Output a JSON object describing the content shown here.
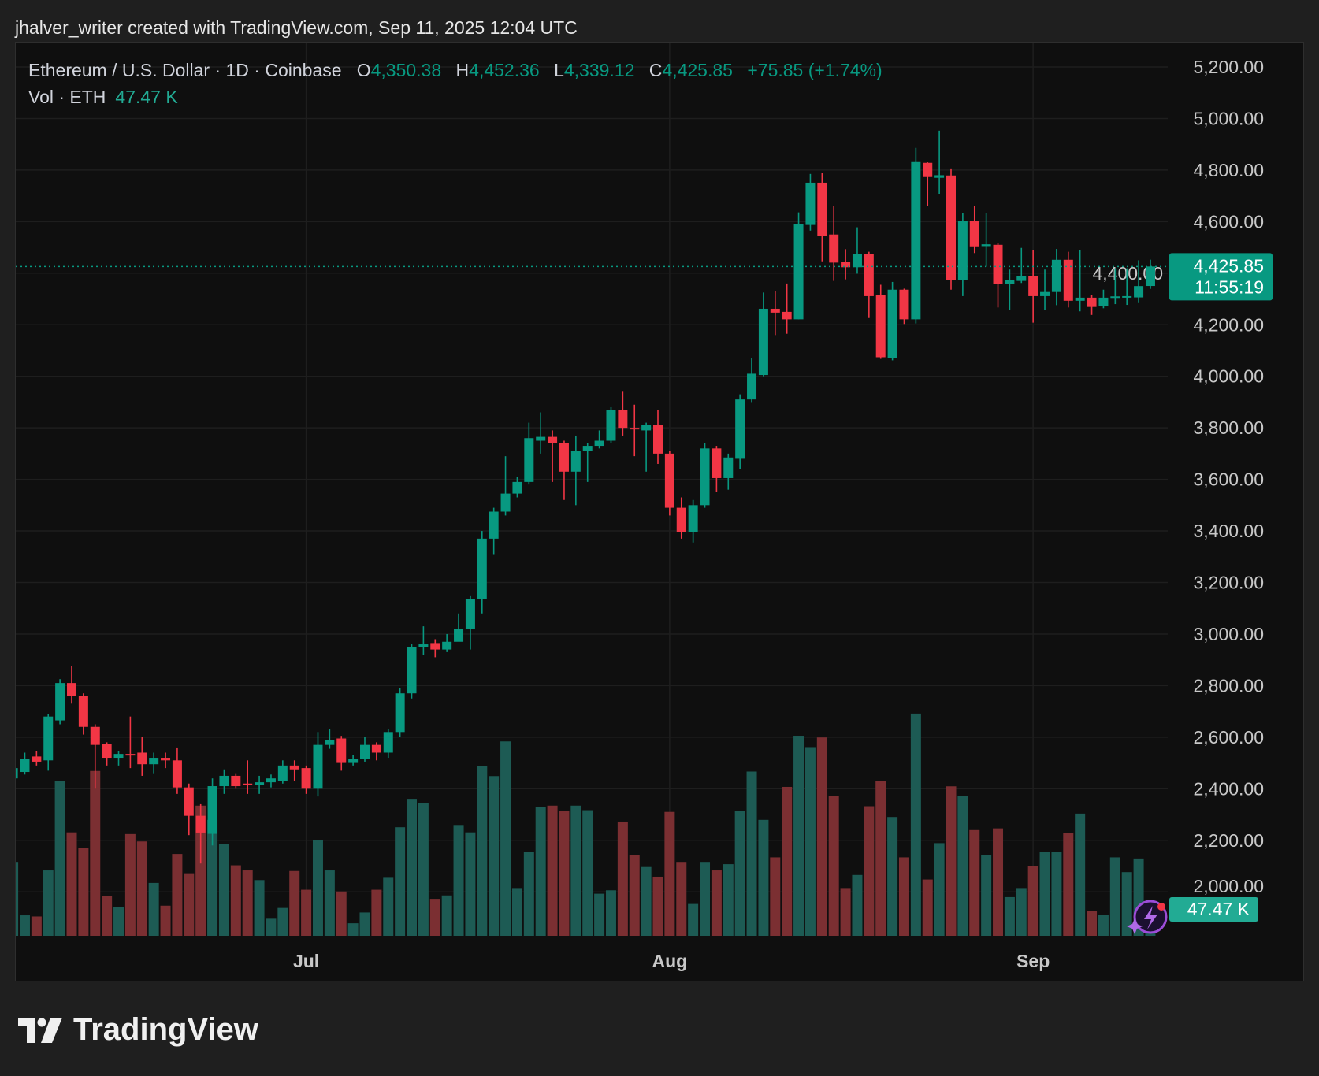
{
  "credit": "jhalver_writer created with TradingView.com, Sep 11, 2025 12:04 UTC",
  "legend": {
    "symbol": "Ethereum / U.S. Dollar · 1D · Coinbase",
    "o_label": "O",
    "o": "4,350.38",
    "h_label": "H",
    "h": "4,452.36",
    "l_label": "L",
    "l": "4,339.12",
    "c_label": "C",
    "c": "4,425.85",
    "change": "+75.85 (+1.74%)",
    "vol_label": "Vol · ETH",
    "vol": "47.47 K"
  },
  "price_label": {
    "price": "4,425.85",
    "countdown": "11:55:19"
  },
  "volume_label": "47.47 K",
  "logo_text": "TradingView",
  "colors": {
    "up": "#089981",
    "down": "#f23645",
    "vol_up": "#1d5b54",
    "vol_down": "#7b2f32",
    "background": "#0f0f0f"
  },
  "chart_data": {
    "type": "candlestick",
    "title": "Ethereum / U.S. Dollar · 1D · Coinbase",
    "ylim": [
      1900,
      5300
    ],
    "y_ticks": [
      "5,200.00",
      "5,000.00",
      "4,800.00",
      "4,600.00",
      "4,400.00",
      "4,200.00",
      "4,000.00",
      "3,800.00",
      "3,600.00",
      "3,400.00",
      "3,200.00",
      "3,000.00",
      "2,800.00",
      "2,600.00",
      "2,400.00",
      "2,200.00",
      "2,000.00"
    ],
    "y_tick_values": [
      5200,
      5000,
      4800,
      4600,
      4400,
      4200,
      4000,
      3800,
      3600,
      3400,
      3200,
      3000,
      2800,
      2600,
      2400,
      2200,
      2000
    ],
    "x_ticks": [
      {
        "label": "Jul",
        "date": "Jul 1"
      },
      {
        "label": "Aug",
        "date": "Aug 1"
      },
      {
        "label": "Sep",
        "date": "Sep 1"
      }
    ],
    "last_price": 4425.85,
    "volume_unit": "K ETH",
    "columns": [
      "date",
      "open",
      "high",
      "low",
      "close",
      "volume"
    ],
    "candles": [
      [
        "Jun 6",
        2440,
        2490,
        2430,
        2480,
        130
      ],
      [
        "Jun 7",
        2465,
        2540,
        2455,
        2515,
        36
      ],
      [
        "Jun 8",
        2525,
        2545,
        2490,
        2505,
        34
      ],
      [
        "Jun 9",
        2510,
        2690,
        2470,
        2680,
        115
      ],
      [
        "Jun 10",
        2665,
        2825,
        2650,
        2810,
        272
      ],
      [
        "Jun 11",
        2810,
        2875,
        2730,
        2760,
        182
      ],
      [
        "Jun 12",
        2760,
        2770,
        2610,
        2640,
        155
      ],
      [
        "Jun 13",
        2640,
        2650,
        2400,
        2570,
        290
      ],
      [
        "Jun 14",
        2575,
        2580,
        2490,
        2520,
        70
      ],
      [
        "Jun 15",
        2520,
        2545,
        2490,
        2535,
        50
      ],
      [
        "Jun 16",
        2535,
        2680,
        2480,
        2530,
        179
      ],
      [
        "Jun 17",
        2540,
        2600,
        2450,
        2495,
        166
      ],
      [
        "Jun 18",
        2495,
        2540,
        2460,
        2520,
        93
      ],
      [
        "Jun 19",
        2520,
        2540,
        2480,
        2510,
        53
      ],
      [
        "Jun 20",
        2510,
        2560,
        2380,
        2405,
        144
      ],
      [
        "Jun 21",
        2405,
        2420,
        2220,
        2295,
        110
      ],
      [
        "Jun 22",
        2295,
        2340,
        2110,
        2230,
        229
      ],
      [
        "Jun 23",
        2225,
        2440,
        2180,
        2410,
        204
      ],
      [
        "Jun 24",
        2410,
        2475,
        2380,
        2450,
        161
      ],
      [
        "Jun 25",
        2450,
        2460,
        2400,
        2410,
        124
      ],
      [
        "Jun 26",
        2420,
        2510,
        2380,
        2415,
        115
      ],
      [
        "Jun 27",
        2415,
        2450,
        2380,
        2425,
        98
      ],
      [
        "Jun 28",
        2425,
        2455,
        2405,
        2440,
        30
      ],
      [
        "Jun 29",
        2430,
        2510,
        2420,
        2490,
        49
      ],
      [
        "Jun 30",
        2490,
        2510,
        2430,
        2475,
        114
      ],
      [
        "Jul 1",
        2480,
        2490,
        2380,
        2400,
        81
      ],
      [
        "Jul 2",
        2400,
        2620,
        2370,
        2570,
        169
      ],
      [
        "Jul 3",
        2570,
        2630,
        2555,
        2590,
        115
      ],
      [
        "Jul 4",
        2595,
        2605,
        2470,
        2500,
        78
      ],
      [
        "Jul 5",
        2500,
        2530,
        2490,
        2515,
        22
      ],
      [
        "Jul 6",
        2515,
        2600,
        2505,
        2570,
        41
      ],
      [
        "Jul 7",
        2570,
        2580,
        2510,
        2540,
        81
      ],
      [
        "Jul 8",
        2540,
        2630,
        2520,
        2620,
        102
      ],
      [
        "Jul 9",
        2620,
        2790,
        2600,
        2770,
        191
      ],
      [
        "Jul 10",
        2770,
        2960,
        2750,
        2950,
        241
      ],
      [
        "Jul 11",
        2950,
        3030,
        2920,
        2960,
        234
      ],
      [
        "Jul 12",
        2965,
        2980,
        2910,
        2940,
        65
      ],
      [
        "Jul 13",
        2940,
        3000,
        2930,
        2970,
        71
      ],
      [
        "Jul 14",
        2970,
        3080,
        2980,
        3020,
        195
      ],
      [
        "Jul 15",
        3020,
        3150,
        2940,
        3135,
        182
      ],
      [
        "Jul 16",
        3135,
        3400,
        3080,
        3370,
        299
      ],
      [
        "Jul 17",
        3370,
        3490,
        3310,
        3475,
        281
      ],
      [
        "Jul 18",
        3475,
        3690,
        3460,
        3545,
        342
      ],
      [
        "Jul 19",
        3545,
        3610,
        3530,
        3590,
        84
      ],
      [
        "Jul 20",
        3590,
        3820,
        3580,
        3760,
        148
      ],
      [
        "Jul 21",
        3750,
        3860,
        3700,
        3765,
        226
      ],
      [
        "Jul 22",
        3765,
        3790,
        3590,
        3740,
        229
      ],
      [
        "Jul 23",
        3740,
        3750,
        3520,
        3630,
        219
      ],
      [
        "Jul 24",
        3630,
        3770,
        3500,
        3710,
        229
      ],
      [
        "Jul 25",
        3710,
        3740,
        3590,
        3730,
        221
      ],
      [
        "Jul 26",
        3730,
        3790,
        3720,
        3750,
        74
      ],
      [
        "Jul 27",
        3750,
        3880,
        3740,
        3870,
        80
      ],
      [
        "Jul 28",
        3870,
        3940,
        3770,
        3800,
        201
      ],
      [
        "Jul 29",
        3800,
        3890,
        3690,
        3795,
        142
      ],
      [
        "Jul 30",
        3790,
        3820,
        3630,
        3810,
        121
      ],
      [
        "Jul 31",
        3810,
        3870,
        3660,
        3700,
        104
      ],
      [
        "Aug 1",
        3700,
        3710,
        3460,
        3490,
        218
      ],
      [
        "Aug 2",
        3490,
        3530,
        3370,
        3395,
        130
      ],
      [
        "Aug 3",
        3395,
        3520,
        3355,
        3500,
        56
      ],
      [
        "Aug 4",
        3500,
        3740,
        3490,
        3720,
        130
      ],
      [
        "Aug 5",
        3720,
        3730,
        3550,
        3605,
        115
      ],
      [
        "Aug 6",
        3605,
        3700,
        3560,
        3685,
        126
      ],
      [
        "Aug 7",
        3680,
        3930,
        3640,
        3910,
        219
      ],
      [
        "Aug 8",
        3910,
        4070,
        3900,
        4010,
        289
      ],
      [
        "Aug 9",
        4005,
        4325,
        4000,
        4262,
        204
      ],
      [
        "Aug 10",
        4262,
        4330,
        4160,
        4247,
        138
      ],
      [
        "Aug 11",
        4250,
        4360,
        4165,
        4221,
        262
      ],
      [
        "Aug 12",
        4221,
        4636,
        4221,
        4590,
        352
      ],
      [
        "Aug 13",
        4587,
        4785,
        4565,
        4751,
        332
      ],
      [
        "Aug 14",
        4751,
        4790,
        4446,
        4546,
        349
      ],
      [
        "Aug 15",
        4550,
        4660,
        4370,
        4441,
        246
      ],
      [
        "Aug 16",
        4443,
        4493,
        4376,
        4423,
        84
      ],
      [
        "Aug 17",
        4423,
        4578,
        4398,
        4473,
        107
      ],
      [
        "Aug 18",
        4473,
        4483,
        4226,
        4311,
        228
      ],
      [
        "Aug 19",
        4314,
        4355,
        4068,
        4074,
        272
      ],
      [
        "Aug 20",
        4070,
        4366,
        4062,
        4336,
        209
      ],
      [
        "Aug 21",
        4336,
        4340,
        4203,
        4221,
        138
      ],
      [
        "Aug 22",
        4221,
        4886,
        4205,
        4831,
        391
      ],
      [
        "Aug 23",
        4828,
        4830,
        4660,
        4773,
        99
      ],
      [
        "Aug 24",
        4770,
        4953,
        4708,
        4780,
        163
      ],
      [
        "Aug 25",
        4779,
        4806,
        4336,
        4373,
        263
      ],
      [
        "Aug 26",
        4373,
        4632,
        4311,
        4602,
        246
      ],
      [
        "Aug 27",
        4602,
        4662,
        4478,
        4504,
        186
      ],
      [
        "Aug 28",
        4505,
        4632,
        4425,
        4512,
        142
      ],
      [
        "Aug 29",
        4510,
        4516,
        4267,
        4357,
        189
      ],
      [
        "Aug 30",
        4357,
        4414,
        4257,
        4373,
        68
      ],
      [
        "Aug 31",
        4370,
        4498,
        4362,
        4390,
        84
      ],
      [
        "Sep 1",
        4390,
        4488,
        4208,
        4311,
        123
      ],
      [
        "Sep 2",
        4311,
        4414,
        4257,
        4327,
        148
      ],
      [
        "Sep 3",
        4327,
        4494,
        4276,
        4452,
        147
      ],
      [
        "Sep 4",
        4452,
        4483,
        4267,
        4293,
        181
      ],
      [
        "Sep 5",
        4293,
        4488,
        4252,
        4305,
        215
      ],
      [
        "Sep 6",
        4305,
        4314,
        4238,
        4269,
        43
      ],
      [
        "Sep 7",
        4271,
        4336,
        4264,
        4305,
        37
      ],
      [
        "Sep 8",
        4305,
        4419,
        4280,
        4310,
        138
      ],
      [
        "Sep 9",
        4307,
        4419,
        4277,
        4311,
        112
      ],
      [
        "Sep 10",
        4306,
        4450,
        4284,
        4350,
        136
      ],
      [
        "Sep 11",
        4350.38,
        4452.36,
        4339.12,
        4425.85,
        47.47
      ]
    ]
  }
}
